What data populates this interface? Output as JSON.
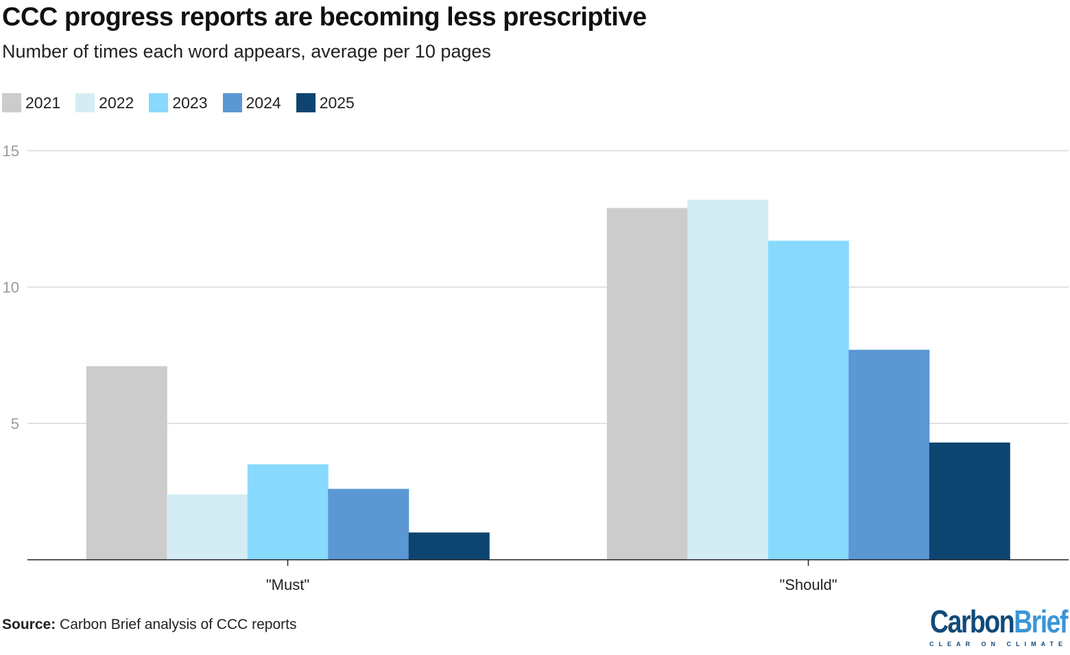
{
  "title": "CCC progress reports are becoming less prescriptive",
  "subtitle": "Number of times each word appears, average per 10 pages",
  "source_label": "Source:",
  "source_text": " Carbon Brief analysis of CCC reports",
  "logo": {
    "part1": "Carbon",
    "part2": "Brief",
    "tagline": "CLEAR ON CLIMATE"
  },
  "chart_data": {
    "type": "bar",
    "title": "CCC progress reports are becoming less prescriptive",
    "subtitle": "Number of times each word appears, average per 10 pages",
    "categories": [
      "\"Must\"",
      "\"Should\""
    ],
    "series": [
      {
        "name": "2021",
        "color": "#cccccc",
        "values": [
          7.1,
          12.9
        ]
      },
      {
        "name": "2022",
        "color": "#d4edf4",
        "values": [
          2.4,
          13.2
        ]
      },
      {
        "name": "2023",
        "color": "#88d9fe",
        "values": [
          3.5,
          11.7
        ]
      },
      {
        "name": "2024",
        "color": "#5b97d3",
        "values": [
          2.6,
          7.7
        ]
      },
      {
        "name": "2025",
        "color": "#0d4570",
        "values": [
          1.0,
          4.3
        ]
      }
    ],
    "ylim": [
      0,
      15
    ],
    "yticks": [
      "5",
      "10",
      "15"
    ],
    "ytick_values": [
      5,
      10,
      15
    ],
    "grid": true,
    "legend_position": "top-left"
  }
}
